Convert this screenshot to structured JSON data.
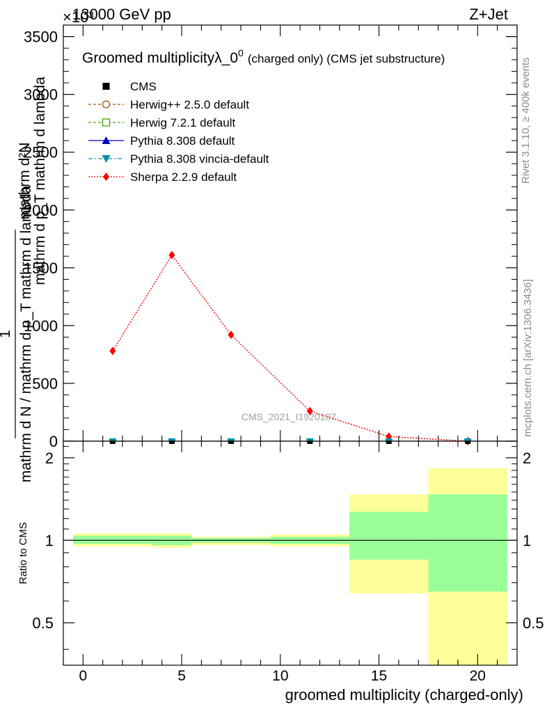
{
  "header": {
    "left": "13000 GeV pp",
    "right": "Z+Jet",
    "exponent": "×10³"
  },
  "side": {
    "rivet": "Rivet 3.1.10, ≥ 400k events",
    "mcplots": "mcplots.cern.ch [arXiv:1306.3436]"
  },
  "watermark": "CMS_2021_I1920187",
  "colors": {
    "Sherpa 2.2.9 default": "#ff0000",
    "Herwig++ 2.5.0 default": "#a05000",
    "Herwig 7.2.1 default": "#40a000",
    "Pythia 8.308 default": "#0000cc",
    "Pythia 8.308 vincia-default": "#0090b0",
    "CMS": "#000000",
    "band_inner": "#99ff99",
    "band_outer": "#ffff99"
  },
  "chart_data": [
    {
      "type": "line",
      "title_main": "Groomed multiplicityλ_0",
      "title_sup": "0",
      "title_rest": "(charged only) (CMS jet substructure)",
      "ylabel_numerator": "1",
      "ylabel_denominator": "mathrm d N / mathrm d p_T mathrm d lambda",
      "ylabel_right": "mathrm d²N",
      "ylabel_right_den": "mathrm d p_T mathrm d lambda",
      "xlim": [
        -1,
        22
      ],
      "ylim": [
        0,
        3.6
      ],
      "yticks": [
        0,
        0.5,
        1,
        1.5,
        2,
        2.5,
        3,
        3.5
      ],
      "ytick_labels": [
        "0",
        "500",
        "1000",
        "1500",
        "2000",
        "2500",
        "3000",
        "3500"
      ],
      "legend": [
        {
          "label": "CMS",
          "marker": "square-filled",
          "line": "none"
        },
        {
          "label": "Herwig++ 2.5.0 default",
          "marker": "circle-open",
          "line": "dashed"
        },
        {
          "label": "Herwig 7.2.1 default",
          "marker": "square-open",
          "line": "dashed"
        },
        {
          "label": "Pythia 8.308 default",
          "marker": "triangle-up",
          "line": "solid"
        },
        {
          "label": "Pythia 8.308 vincia-default",
          "marker": "triangle-down",
          "line": "dashdot"
        },
        {
          "label": "Sherpa 2.2.9 default",
          "marker": "diamond",
          "line": "dotted"
        }
      ],
      "x": [
        1.5,
        4.5,
        7.5,
        11.5,
        15.5,
        19.5
      ],
      "series": [
        {
          "name": "Sherpa 2.2.9 default",
          "values": [
            0.78,
            1.61,
            0.92,
            0.26,
            0.04,
            0.0
          ]
        },
        {
          "name": "CMS",
          "values": [
            0.0,
            0.0,
            0.0,
            0.0,
            0.0,
            0.0
          ]
        },
        {
          "name": "Pythia 8.308 vincia-default",
          "values": [
            0.0,
            0.0,
            0.0,
            0.0,
            0.0,
            0.0
          ]
        }
      ]
    },
    {
      "type": "area",
      "ylabel": "Ratio to CMS",
      "xlabel": "groomed multiplicity (charged-only)",
      "xlim": [
        -1,
        22
      ],
      "ylim": [
        0.35,
        2.3
      ],
      "yticks": [
        0.5,
        1,
        2
      ],
      "ytick_labels": [
        "0.5",
        "1",
        "2"
      ],
      "xticks": [
        0,
        5,
        10,
        15,
        20
      ],
      "xtick_labels": [
        "0",
        "5",
        "10",
        "15",
        "20"
      ],
      "bins": [
        {
          "lo": -0.5,
          "hi": 3.5,
          "inner": [
            0.97,
            1.04
          ],
          "outer": [
            0.95,
            1.06
          ]
        },
        {
          "lo": 3.5,
          "hi": 5.5,
          "inner": [
            0.96,
            1.04
          ],
          "outer": [
            0.94,
            1.06
          ]
        },
        {
          "lo": 5.5,
          "hi": 9.5,
          "inner": [
            0.98,
            1.02
          ],
          "outer": [
            0.96,
            1.03
          ]
        },
        {
          "lo": 9.5,
          "hi": 13.5,
          "inner": [
            0.97,
            1.03
          ],
          "outer": [
            0.95,
            1.05
          ]
        },
        {
          "lo": 13.5,
          "hi": 17.5,
          "inner": [
            0.85,
            1.27
          ],
          "outer": [
            0.64,
            1.47
          ]
        },
        {
          "lo": 17.5,
          "hi": 21.5,
          "inner": [
            0.65,
            1.47
          ],
          "outer": [
            0.35,
            1.83
          ]
        }
      ]
    }
  ]
}
